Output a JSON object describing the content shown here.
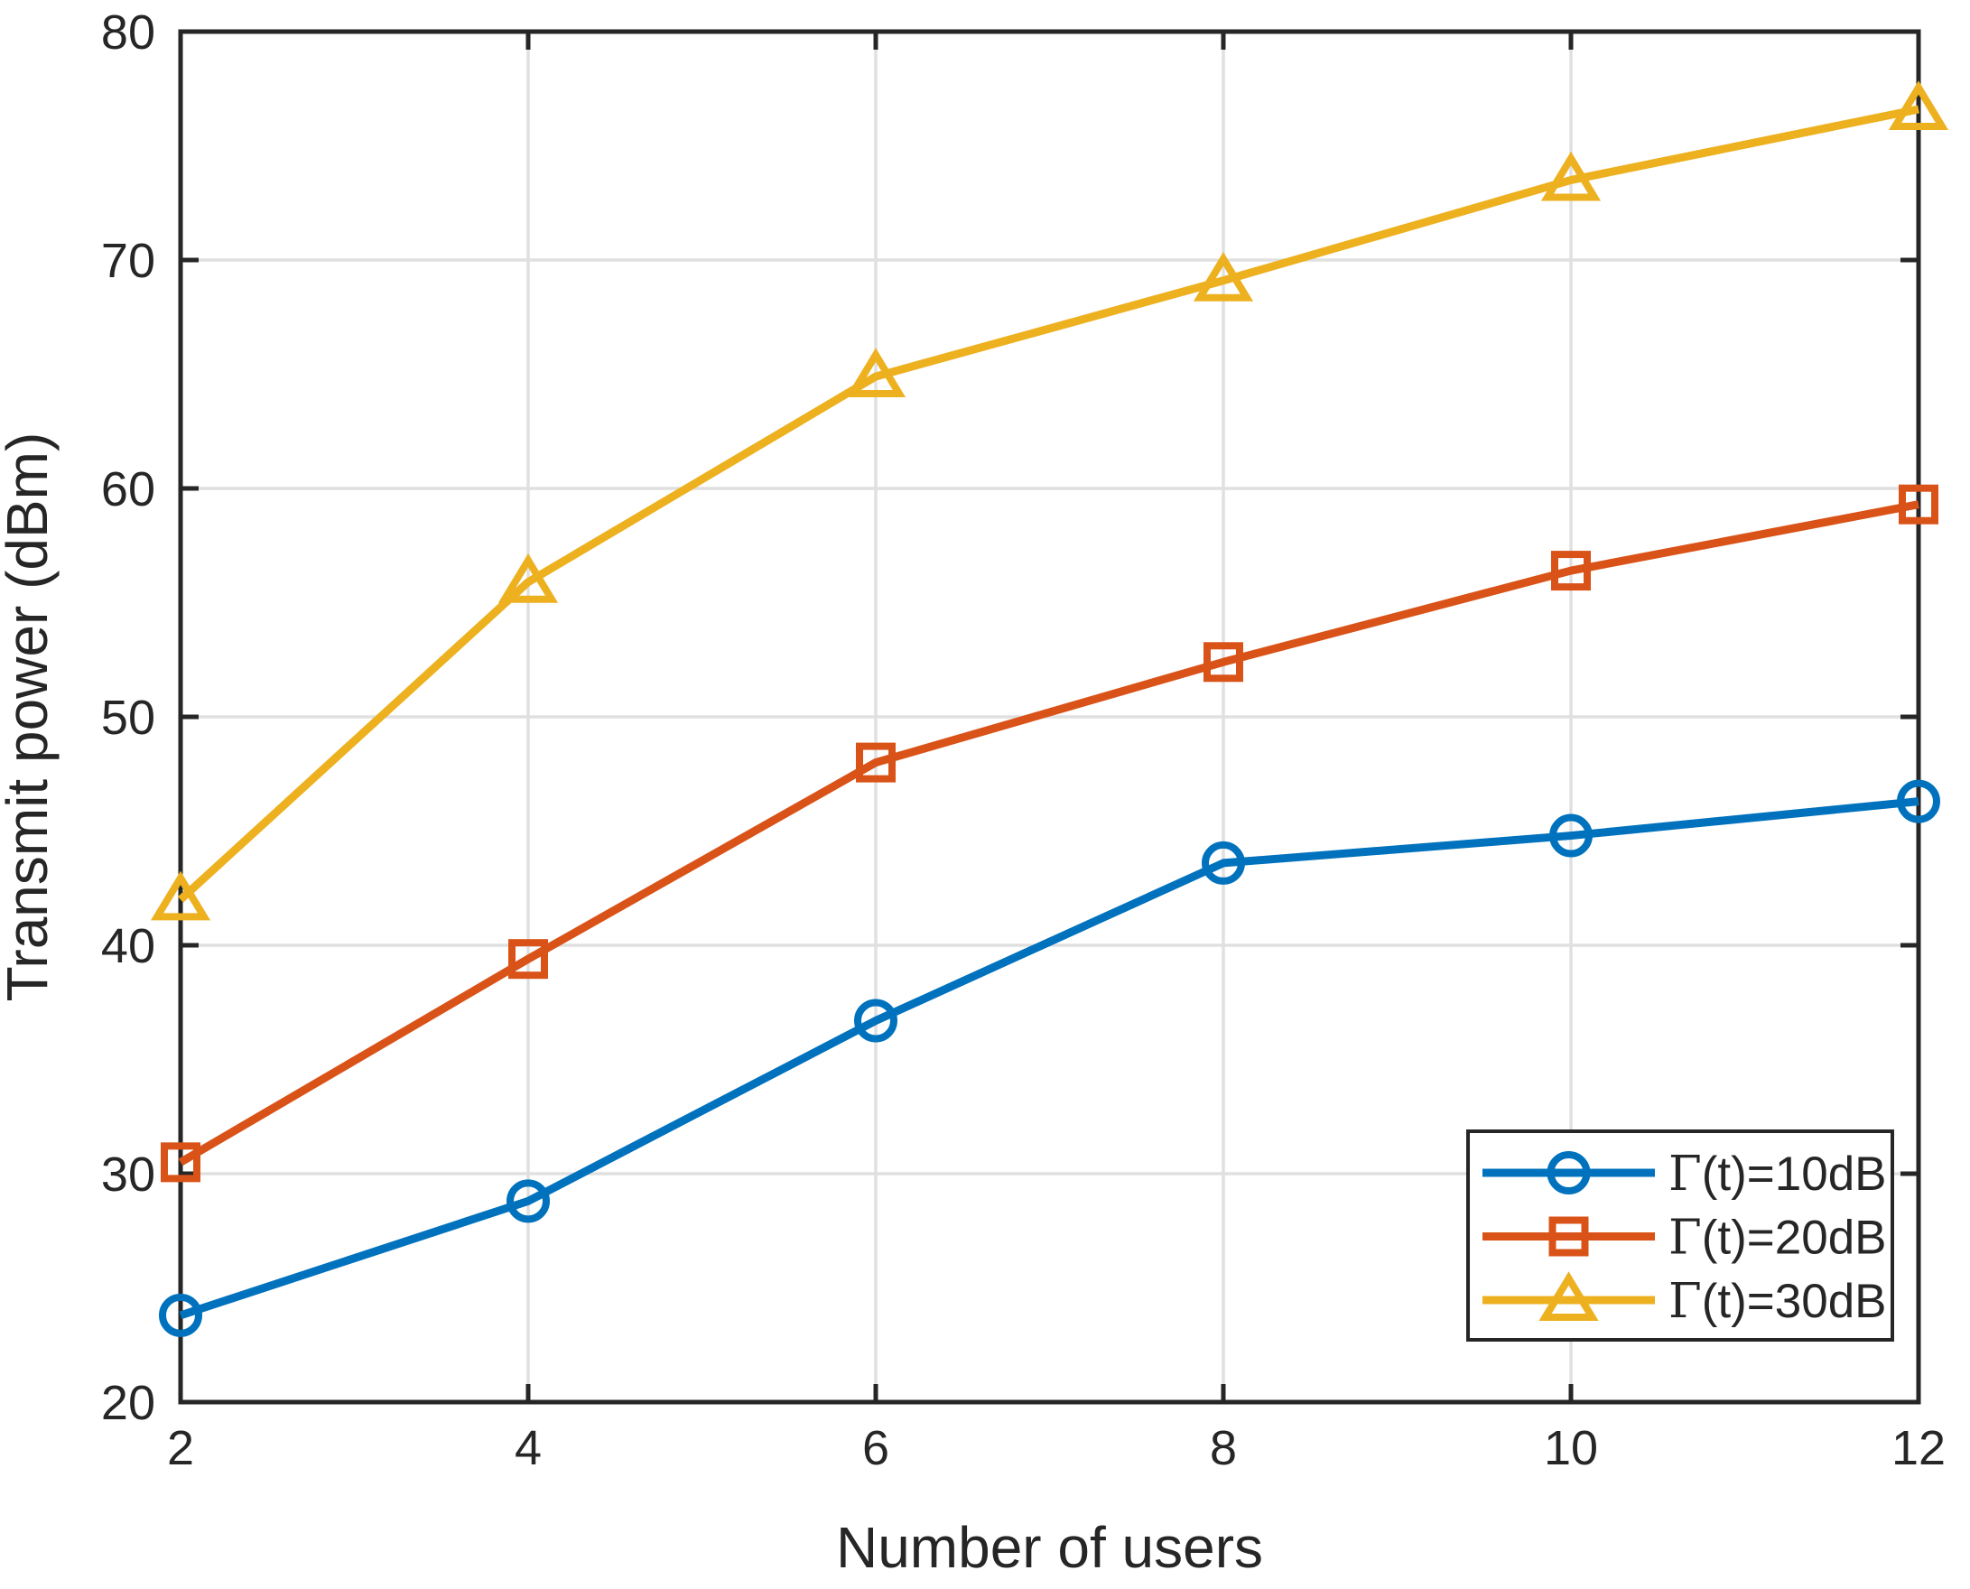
{
  "figure": {
    "background": "#ffffff",
    "text_color": "#262626"
  },
  "chart_data": {
    "type": "line",
    "title": "",
    "xlabel": "Number of users",
    "ylabel": "Transmit power (dBm)",
    "x": [
      2,
      4,
      6,
      8,
      10,
      12
    ],
    "xlim": [
      2,
      12
    ],
    "ylim": [
      20,
      80
    ],
    "xticks": [
      "2",
      "4",
      "6",
      "8",
      "10",
      "12"
    ],
    "yticks": [
      "20",
      "30",
      "40",
      "50",
      "60",
      "70",
      "80"
    ],
    "grid": true,
    "legend_position": "lower-right",
    "axis_color": "#262626",
    "grid_color": "#E0E0E0",
    "plot_background": "#ffffff",
    "legend_border_color": "#262626",
    "legend_background": "#ffffff",
    "series": [
      {
        "name": "Γ(t)=10dB",
        "slug": "gamma-t-10db",
        "marker": "circle",
        "color": "#0072BD",
        "values": [
          23.8,
          28.8,
          36.7,
          43.6,
          44.8,
          46.3
        ]
      },
      {
        "name": "Γ(t)=20dB",
        "slug": "gamma-t-20db",
        "marker": "square",
        "color": "#D95319",
        "values": [
          30.5,
          39.4,
          48.0,
          52.4,
          56.4,
          59.3
        ]
      },
      {
        "name": "Γ(t)=30dB",
        "slug": "gamma-t-30db",
        "marker": "triangle",
        "color": "#EDB120",
        "values": [
          42.0,
          55.9,
          64.9,
          69.1,
          73.5,
          76.6
        ]
      }
    ]
  }
}
